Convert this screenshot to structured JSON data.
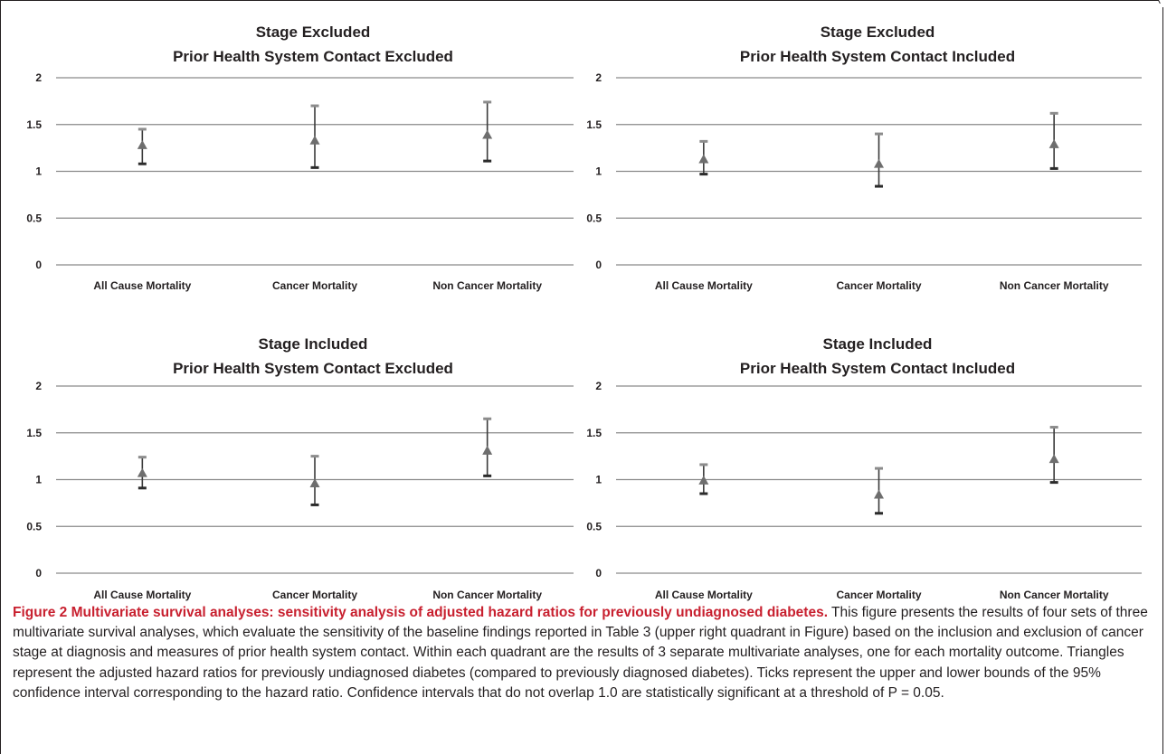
{
  "chart_data": [
    {
      "type": "errorbar",
      "title": [
        "Stage Excluded",
        "Prior Health System Contact Excluded"
      ],
      "categories": [
        "All Cause Mortality",
        "Cancer Mortality",
        "Non Cancer Mortality"
      ],
      "ylim": [
        0,
        2
      ],
      "yticks": [
        "0",
        "0.5",
        "1",
        "1.5",
        "2"
      ],
      "grid": true,
      "point": [
        1.28,
        1.33,
        1.39
      ],
      "lower": [
        1.08,
        1.04,
        1.11
      ],
      "upper": [
        1.45,
        1.7,
        1.74
      ]
    },
    {
      "type": "errorbar",
      "title": [
        "Stage Excluded",
        "Prior Health System Contact Included"
      ],
      "categories": [
        "All Cause Mortality",
        "Cancer Mortality",
        "Non Cancer Mortality"
      ],
      "ylim": [
        0,
        2
      ],
      "yticks": [
        "0",
        "0.5",
        "1",
        "1.5",
        "2"
      ],
      "grid": true,
      "point": [
        1.13,
        1.08,
        1.29
      ],
      "lower": [
        0.97,
        0.84,
        1.03
      ],
      "upper": [
        1.32,
        1.4,
        1.62
      ]
    },
    {
      "type": "errorbar",
      "title": [
        "Stage Included",
        "Prior Health System Contact Excluded"
      ],
      "categories": [
        "All Cause Mortality",
        "Cancer Mortality",
        "Non Cancer Mortality"
      ],
      "ylim": [
        0,
        2
      ],
      "yticks": [
        "0",
        "0.5",
        "1",
        "1.5",
        "2"
      ],
      "grid": true,
      "point": [
        1.07,
        0.96,
        1.31
      ],
      "lower": [
        0.91,
        0.73,
        1.04
      ],
      "upper": [
        1.24,
        1.25,
        1.65
      ]
    },
    {
      "type": "errorbar",
      "title": [
        "Stage Included",
        "Prior Health System Contact Included"
      ],
      "categories": [
        "All Cause Mortality",
        "Cancer Mortality",
        "Non Cancer Mortality"
      ],
      "ylim": [
        0,
        2
      ],
      "yticks": [
        "0",
        "0.5",
        "1",
        "1.5",
        "2"
      ],
      "grid": true,
      "point": [
        0.99,
        0.84,
        1.22
      ],
      "lower": [
        0.85,
        0.64,
        0.97
      ],
      "upper": [
        1.16,
        1.12,
        1.56
      ]
    }
  ],
  "caption": {
    "lead": "Figure 2 Multivariate survival analyses: sensitivity analysis of adjusted hazard ratios for previously undiagnosed diabetes.",
    "body": " This figure presents the results of four sets of three multivariate survival analyses, which evaluate the sensitivity of the baseline findings reported in Table 3 (upper right quadrant in Figure) based on the inclusion and exclusion of cancer stage at diagnosis and measures of prior health system contact. Within each quadrant are the results of 3 separate multivariate analyses, one for each mortality outcome. Triangles represent the adjusted hazard ratios for previously undiagnosed diabetes (compared to previously diagnosed diabetes). Ticks represent the upper and lower bounds of the 95% confidence interval corresponding to the hazard ratio. Confidence intervals that do not overlap 1.0 are statistically significant at a threshold of P = 0.05."
  },
  "colors": {
    "grid": "#8a8a8a",
    "whisker": "#3a3a3a",
    "upper_cap": "#8c8c8c",
    "lower_cap": "#2b2b2b",
    "marker": "#6e6e6e",
    "caption_lead": "#c8202f",
    "frame": "#231f20"
  }
}
